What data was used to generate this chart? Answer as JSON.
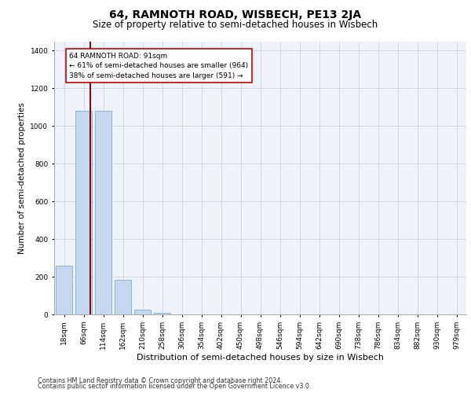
{
  "title": "64, RAMNOTH ROAD, WISBECH, PE13 2JA",
  "subtitle": "Size of property relative to semi-detached houses in Wisbech",
  "xlabel": "Distribution of semi-detached houses by size in Wisbech",
  "ylabel": "Number of semi-detached properties",
  "footer1": "Contains HM Land Registry data © Crown copyright and database right 2024.",
  "footer2": "Contains public sector information licensed under the Open Government Licence v3.0.",
  "bar_labels": [
    "18sqm",
    "66sqm",
    "114sqm",
    "162sqm",
    "210sqm",
    "258sqm",
    "306sqm",
    "354sqm",
    "402sqm",
    "450sqm",
    "498sqm",
    "546sqm",
    "594sqm",
    "642sqm",
    "690sqm",
    "738sqm",
    "786sqm",
    "834sqm",
    "882sqm",
    "930sqm",
    "979sqm"
  ],
  "bar_values": [
    260,
    1080,
    1080,
    185,
    25,
    10,
    0,
    0,
    0,
    0,
    0,
    0,
    0,
    0,
    0,
    0,
    0,
    0,
    0,
    0,
    0
  ],
  "bar_color": "#c5d8f0",
  "bar_edge_color": "#7aafd4",
  "property_line_x": 1.35,
  "property_line_color": "#8b0000",
  "annotation_line1": "64 RAMNOTH ROAD: 91sqm",
  "annotation_line2": "← 61% of semi-detached houses are smaller (964)",
  "annotation_line3": "38% of semi-detached houses are larger (591) →",
  "ylim": [
    0,
    1450
  ],
  "yticks": [
    0,
    200,
    400,
    600,
    800,
    1000,
    1200,
    1400
  ],
  "background_color": "#eef2fa",
  "grid_color": "#c8ccd8",
  "title_fontsize": 10,
  "subtitle_fontsize": 8.5,
  "xlabel_fontsize": 8,
  "ylabel_fontsize": 7.5,
  "tick_fontsize": 6.5,
  "annot_fontsize": 6.5,
  "footer_fontsize": 5.8
}
